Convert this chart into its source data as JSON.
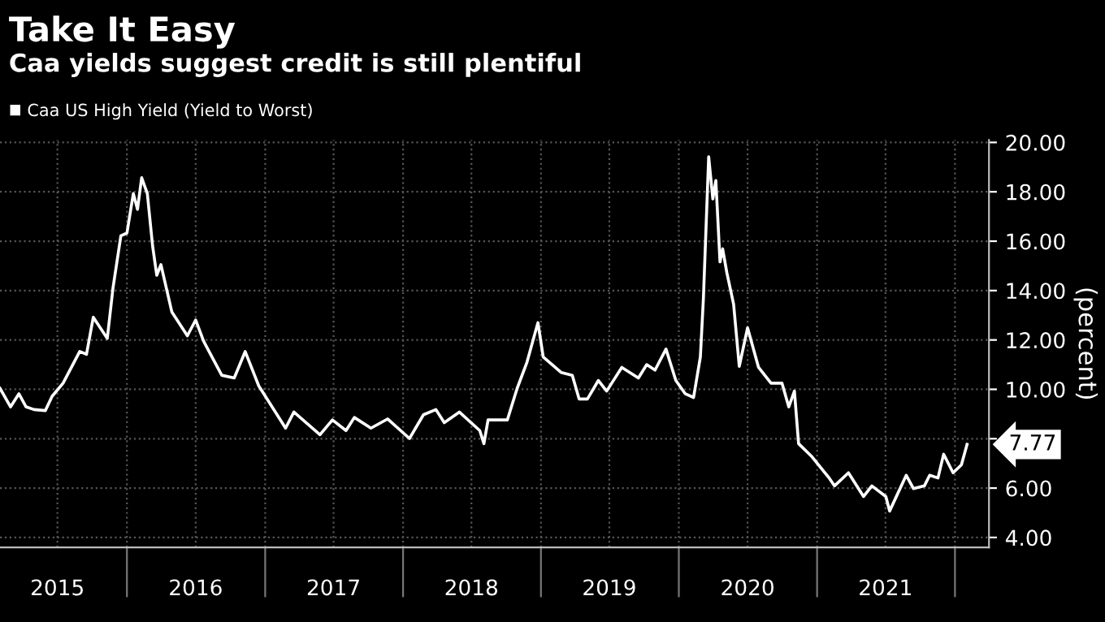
{
  "chart_data": {
    "type": "line",
    "title": "Take It Easy",
    "subtitle": "Caa yields suggest credit is still plentiful",
    "ylabel": "(percent)",
    "x": [
      "2015-01-30",
      "2015-02-27",
      "2015-03-21",
      "2015-04-09",
      "2015-04-30",
      "2015-05-30",
      "2015-06-17",
      "2015-07-16",
      "2015-08-29",
      "2015-09-16",
      "2015-10-04",
      "2015-11-10",
      "2015-11-25",
      "2015-12-16",
      "2016-01-01",
      "2016-01-18",
      "2016-01-29",
      "2016-02-09",
      "2016-02-24",
      "2016-03-09",
      "2016-03-20",
      "2016-03-31",
      "2016-04-29",
      "2016-06-09",
      "2016-07-01",
      "2016-07-22",
      "2016-09-08",
      "2016-10-11",
      "2016-11-09",
      "2016-12-15",
      "2017-02-24",
      "2017-03-18",
      "2017-05-26",
      "2017-06-28",
      "2017-08-03",
      "2017-08-25",
      "2017-10-08",
      "2017-11-21",
      "2018-01-18",
      "2018-02-24",
      "2018-03-29",
      "2018-04-20",
      "2018-05-30",
      "2018-07-23",
      "2018-08-03",
      "2018-08-14",
      "2018-10-04",
      "2018-10-30",
      "2018-11-25",
      "2018-12-24",
      "2019-01-07",
      "2019-02-24",
      "2019-03-25",
      "2019-04-12",
      "2019-05-04",
      "2019-06-02",
      "2019-06-24",
      "2019-08-03",
      "2019-09-16",
      "2019-10-08",
      "2019-10-30",
      "2019-11-28",
      "2019-12-24",
      "2020-01-18",
      "2020-02-09",
      "2020-02-27",
      "2020-03-06",
      "2020-03-20",
      "2020-03-31",
      "2020-04-08",
      "2020-04-19",
      "2020-04-26",
      "2020-05-07",
      "2020-05-25",
      "2020-06-09",
      "2020-07-01",
      "2020-07-30",
      "2020-09-01",
      "2020-09-30",
      "2020-10-18",
      "2020-11-02",
      "2020-11-13",
      "2020-12-19",
      "2021-02-02",
      "2021-02-16",
      "2021-03-25",
      "2021-05-04",
      "2021-05-26",
      "2021-07-02",
      "2021-07-12",
      "2021-08-25",
      "2021-09-13",
      "2021-10-12",
      "2021-10-26",
      "2021-11-17",
      "2021-12-02",
      "2021-12-27",
      "2022-01-18",
      "2022-02-02"
    ],
    "series": [
      {
        "name": "Caa US High Yield (Yield to Worst)",
        "color": "#ffffff",
        "values": [
          10.04,
          9.29,
          9.82,
          9.29,
          9.18,
          9.14,
          9.72,
          10.25,
          11.53,
          11.42,
          12.92,
          12.06,
          14.09,
          16.22,
          16.33,
          17.93,
          17.29,
          18.57,
          17.93,
          15.8,
          14.62,
          15.05,
          13.13,
          12.17,
          12.81,
          11.95,
          10.57,
          10.46,
          11.53,
          10.14,
          8.43,
          9.08,
          8.16,
          8.76,
          8.33,
          8.86,
          8.43,
          8.8,
          8.01,
          8.97,
          9.18,
          8.65,
          9.08,
          8.33,
          7.8,
          8.76,
          8.76,
          10.04,
          11.1,
          12.7,
          11.31,
          10.68,
          10.57,
          9.61,
          9.61,
          10.36,
          9.93,
          10.89,
          10.46,
          11.0,
          10.78,
          11.63,
          10.36,
          9.82,
          9.67,
          11.31,
          13.66,
          19.42,
          17.71,
          18.46,
          15.16,
          15.69,
          14.73,
          13.45,
          10.93,
          12.49,
          10.89,
          10.25,
          10.25,
          9.29,
          9.93,
          7.8,
          7.26,
          6.41,
          6.09,
          6.62,
          5.66,
          6.09,
          5.66,
          5.07,
          6.52,
          5.98,
          6.09,
          6.52,
          6.41,
          7.37,
          6.62,
          6.94,
          7.77
        ]
      }
    ],
    "xlim": [
      "2015-01-30",
      "2022-04-01"
    ],
    "xticks": [
      {
        "value": "2016-01-01",
        "label": null
      },
      {
        "value": "2017-01-01",
        "label": null
      },
      {
        "value": "2018-01-01",
        "label": null
      },
      {
        "value": "2019-01-01",
        "label": null
      },
      {
        "value": "2020-01-01",
        "label": null
      },
      {
        "value": "2021-01-01",
        "label": null
      },
      {
        "value": "2022-01-01",
        "label": null
      },
      {
        "value": "2015-07-01",
        "label": "2015"
      },
      {
        "value": "2016-07-01",
        "label": "2016"
      },
      {
        "value": "2017-07-01",
        "label": "2017"
      },
      {
        "value": "2018-07-01",
        "label": "2018"
      },
      {
        "value": "2019-07-01",
        "label": "2019"
      },
      {
        "value": "2020-07-01",
        "label": "2020"
      },
      {
        "value": "2021-07-01",
        "label": "2021"
      }
    ],
    "ylim": [
      3.6,
      20.1
    ],
    "yticks": [
      {
        "value": 4,
        "label": "4.00"
      },
      {
        "value": 6,
        "label": "6.00"
      },
      {
        "value": 8,
        "label": null
      },
      {
        "value": 10,
        "label": "10.00"
      },
      {
        "value": 12,
        "label": "12.00"
      },
      {
        "value": 14,
        "label": "14.00"
      },
      {
        "value": 16,
        "label": "16.00"
      },
      {
        "value": 18,
        "label": "18.00"
      },
      {
        "value": 20,
        "label": "20.00"
      }
    ],
    "annotations": [
      {
        "text": "7.77",
        "x": "2022-02-02",
        "y": 7.77
      }
    ],
    "grid": true,
    "legend": "top left",
    "line_style": "solid",
    "marker": "none"
  }
}
